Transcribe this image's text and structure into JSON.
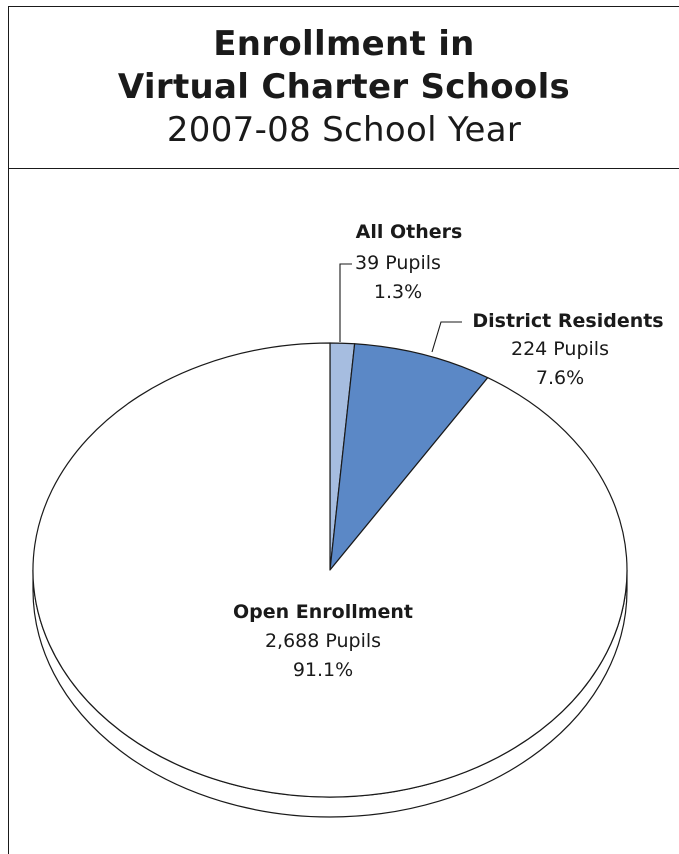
{
  "title": {
    "line1": "Enrollment in",
    "line2": "Virtual Charter Schools",
    "line3": "2007-08 School Year"
  },
  "chart_data": {
    "type": "pie",
    "slices": [
      {
        "name": "All Others",
        "pupils": 39,
        "pupils_label": "39 Pupils",
        "percent": 1.3,
        "percent_label": "1.3%",
        "color": "#a6bde0"
      },
      {
        "name": "District Residents",
        "pupils": 224,
        "pupils_label": "224 Pupils",
        "percent": 7.6,
        "percent_label": "7.6%",
        "color": "#5b88c6"
      },
      {
        "name": "Open Enrollment",
        "pupils": 2688,
        "pupils_label": "2,688 Pupils",
        "percent": 91.1,
        "percent_label": "91.1%",
        "color": "#ffffff"
      }
    ],
    "style": "3d-tilted"
  }
}
